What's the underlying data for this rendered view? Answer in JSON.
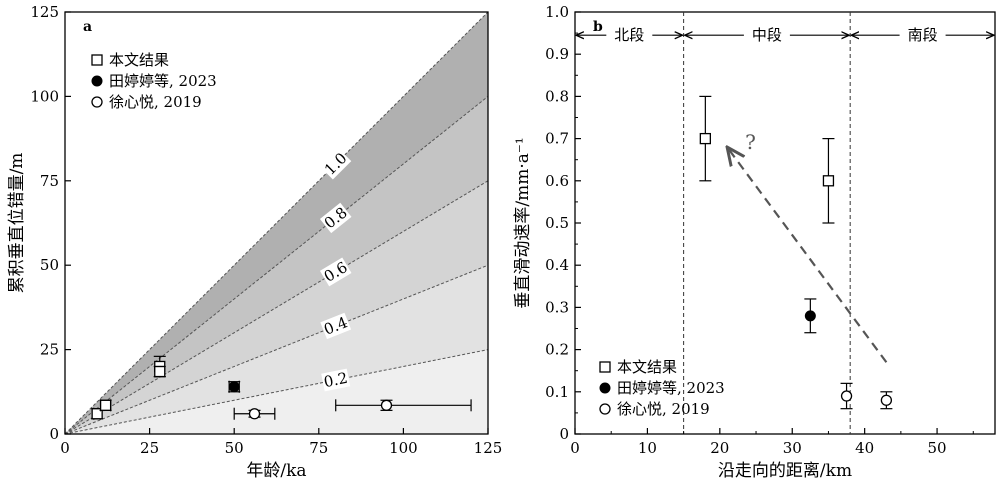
{
  "chart_data": [
    {
      "panel": "a",
      "type": "scatter",
      "xlabel": "年龄/ka",
      "ylabel": "累积垂直位错量/m",
      "xlim": [
        0,
        125
      ],
      "ylim": [
        0,
        125
      ],
      "xticks": [
        "0",
        "25",
        "50",
        "75",
        "100",
        "125"
      ],
      "yticks": [
        "0",
        "25",
        "50",
        "75",
        "100",
        "125"
      ],
      "rate_bands": [
        {
          "rate": 1.0,
          "label": "1.0",
          "color": "#b0b0b0"
        },
        {
          "rate": 0.8,
          "label": "0.8",
          "color": "#c4c4c4"
        },
        {
          "rate": 0.6,
          "label": "0.6",
          "color": "#d4d4d4"
        },
        {
          "rate": 0.4,
          "label": "0.4",
          "color": "#e2e2e2"
        },
        {
          "rate": 0.2,
          "label": "0.2",
          "color": "#efefef"
        }
      ],
      "legend": [
        {
          "label": "本文结果",
          "marker": "open-square"
        },
        {
          "label": "田婷婷等, 2023",
          "marker": "filled-circle"
        },
        {
          "label": "徐心悦, 2019",
          "marker": "open-circle"
        }
      ],
      "series": [
        {
          "name": "本文结果",
          "marker": "open-square",
          "points": [
            {
              "x": 9.5,
              "y": 6,
              "xerr": [
                1,
                1
              ],
              "yerr": [
                1.5,
                1.5
              ]
            },
            {
              "x": 12,
              "y": 8.5,
              "xerr": [
                1.5,
                1.5
              ],
              "yerr": [
                1.5,
                1.5
              ]
            },
            {
              "x": 28,
              "y": 20,
              "xerr": [
                0,
                0
              ],
              "yerr": [
                3,
                3
              ]
            },
            {
              "x": 28,
              "y": 18.5,
              "xerr": [
                0,
                0
              ],
              "yerr": [
                1.5,
                1.5
              ]
            }
          ]
        },
        {
          "name": "田婷婷等, 2023",
          "marker": "filled-circle",
          "points": [
            {
              "x": 50,
              "y": 14,
              "xerr": [
                1.5,
                1.5
              ],
              "yerr": [
                1.5,
                1.5
              ]
            }
          ]
        },
        {
          "name": "徐心悦, 2019",
          "marker": "open-circle",
          "points": [
            {
              "x": 56,
              "y": 6,
              "xerr": [
                6,
                6
              ],
              "yerr": [
                1,
                1
              ]
            },
            {
              "x": 95,
              "y": 8.5,
              "xerr": [
                15,
                25
              ],
              "yerr": [
                1.5,
                1.5
              ]
            }
          ]
        }
      ]
    },
    {
      "panel": "b",
      "type": "scatter",
      "xlabel": "沿走向的距离/km",
      "ylabel": "垂直滑动速率/mm·a⁻¹",
      "xlim": [
        0,
        58
      ],
      "ylim": [
        0,
        1.0
      ],
      "xticks": [
        "0",
        "10",
        "20",
        "30",
        "40",
        "50"
      ],
      "yticks": [
        "0",
        "0.1",
        "0.2",
        "0.3",
        "0.4",
        "0.5",
        "0.6",
        "0.7",
        "0.8",
        "0.9",
        "1.0"
      ],
      "segments": [
        {
          "label": "北段",
          "from": 0,
          "to": 15
        },
        {
          "label": "中段",
          "from": 15,
          "to": 38
        },
        {
          "label": "南段",
          "from": 38,
          "to": 58
        }
      ],
      "boundaries": [
        15,
        38
      ],
      "trend_arrow": {
        "from": [
          43,
          0.17
        ],
        "to": [
          21,
          0.68
        ],
        "label": "?"
      },
      "legend": [
        {
          "label": "本文结果",
          "marker": "open-square"
        },
        {
          "label": "田婷婷等, 2023",
          "marker": "filled-circle"
        },
        {
          "label": "徐心悦, 2019",
          "marker": "open-circle"
        }
      ],
      "series": [
        {
          "name": "本文结果",
          "marker": "open-square",
          "points": [
            {
              "x": 18,
              "y": 0.7,
              "yerr": [
                0.1,
                0.1
              ]
            },
            {
              "x": 35,
              "y": 0.6,
              "yerr": [
                0.1,
                0.1
              ]
            }
          ]
        },
        {
          "name": "田婷婷等, 2023",
          "marker": "filled-circle",
          "points": [
            {
              "x": 32.5,
              "y": 0.28,
              "yerr": [
                0.04,
                0.04
              ]
            }
          ]
        },
        {
          "name": "徐心悦, 2019",
          "marker": "open-circle",
          "points": [
            {
              "x": 37.5,
              "y": 0.09,
              "yerr": [
                0.03,
                0.03
              ]
            },
            {
              "x": 43,
              "y": 0.08,
              "yerr": [
                0.02,
                0.02
              ]
            }
          ]
        }
      ]
    }
  ]
}
